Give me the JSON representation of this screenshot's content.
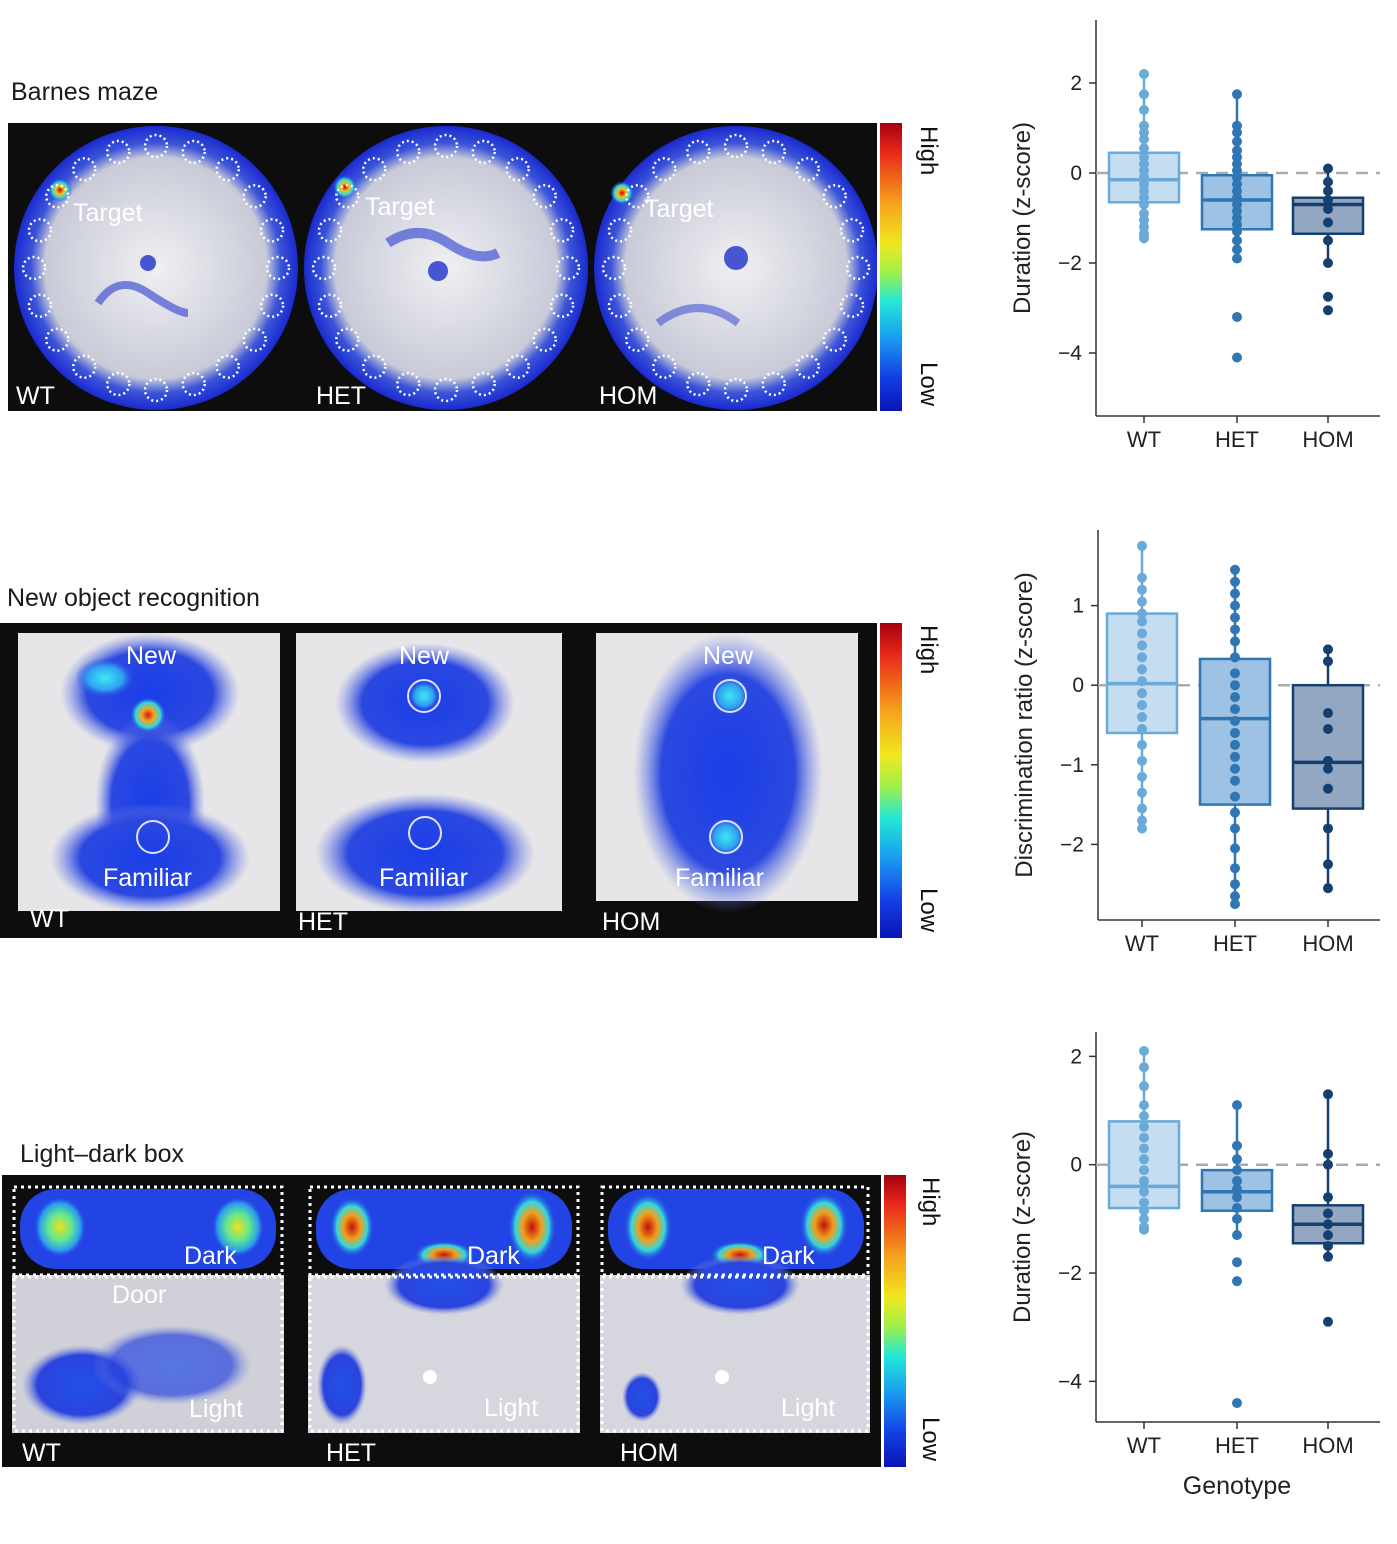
{
  "panels": [
    {
      "title": "Barnes maze",
      "targets": [
        "Target",
        "Target",
        "Target"
      ],
      "groups": [
        "WT",
        "HET",
        "HOM"
      ],
      "colorbar": {
        "high": "High",
        "low": "Low"
      }
    },
    {
      "title": "New object recognition",
      "new": [
        "New",
        "New",
        "New"
      ],
      "familiar": [
        "Familiar",
        "Familiar",
        "Familiar"
      ],
      "groups": [
        "WT",
        "HET",
        "HOM"
      ],
      "colorbar": {
        "high": "High",
        "low": "Low"
      }
    },
    {
      "title": "Light–dark box",
      "dark": [
        "Dark",
        "Dark",
        "Dark"
      ],
      "light": [
        "Light",
        "Light",
        "Light"
      ],
      "door": "Door",
      "groups": [
        "WT",
        "HET",
        "HOM"
      ],
      "colorbar": {
        "high": "High",
        "low": "Low"
      }
    }
  ],
  "colors": {
    "WT": "#6aaad8",
    "HET": "#2f76b4",
    "HOM": "#153f6e"
  },
  "chart_data": [
    {
      "type": "box",
      "ylabel": "Duration (z-score)",
      "xlabel": "",
      "categories": [
        "WT",
        "HET",
        "HOM"
      ],
      "ylim": [
        -5.4,
        3.4
      ],
      "yticks": [
        2,
        0,
        -2,
        -4
      ],
      "ytick_labels": [
        "2",
        "0",
        "−2",
        "−4"
      ],
      "reference_line": 0,
      "boxes": [
        {
          "q1": -0.65,
          "median": -0.15,
          "q3": 0.45,
          "low": -1.45,
          "high": 2.2,
          "points": [
            2.2,
            1.75,
            1.4,
            1.05,
            0.9,
            0.75,
            0.55,
            0.35,
            0.2,
            0.05,
            -0.1,
            -0.25,
            -0.4,
            -0.55,
            -0.7,
            -0.9,
            -1.05,
            -1.2,
            -1.35,
            -1.45
          ]
        },
        {
          "q1": -1.25,
          "median": -0.6,
          "q3": -0.05,
          "low": -1.95,
          "high": 1.75,
          "points": [
            1.75,
            1.05,
            0.9,
            0.7,
            0.5,
            0.35,
            0.2,
            0.05,
            -0.1,
            -0.25,
            -0.4,
            -0.55,
            -0.7,
            -0.85,
            -1.0,
            -1.15,
            -1.3,
            -1.5,
            -1.7,
            -1.9,
            -3.2,
            -4.1
          ]
        },
        {
          "q1": -1.35,
          "median": -0.7,
          "q3": -0.55,
          "low": -2.0,
          "high": 0.1,
          "points": [
            0.1,
            -0.2,
            -0.4,
            -0.6,
            -0.8,
            -1.1,
            -1.5,
            -2.0,
            -2.75,
            -3.05
          ]
        }
      ]
    },
    {
      "type": "box",
      "ylabel": "Discrimination ratio (z-score)",
      "xlabel": "",
      "categories": [
        "WT",
        "HET",
        "HOM"
      ],
      "ylim": [
        -2.95,
        1.95
      ],
      "yticks": [
        1,
        0,
        -1,
        -2
      ],
      "ytick_labels": [
        "1",
        "0",
        "−1",
        "−2"
      ],
      "reference_line": 0,
      "boxes": [
        {
          "q1": -0.6,
          "median": 0.02,
          "q3": 0.9,
          "low": -1.8,
          "high": 1.75,
          "points": [
            1.75,
            1.35,
            1.2,
            1.05,
            0.9,
            0.8,
            0.65,
            0.5,
            0.35,
            0.2,
            0.05,
            -0.1,
            -0.25,
            -0.4,
            -0.55,
            -0.75,
            -0.95,
            -1.15,
            -1.35,
            -1.55,
            -1.7,
            -1.8
          ]
        },
        {
          "q1": -1.5,
          "median": -0.42,
          "q3": 0.33,
          "low": -2.75,
          "high": 1.45,
          "points": [
            1.45,
            1.3,
            1.15,
            1.0,
            0.85,
            0.7,
            0.55,
            0.35,
            0.15,
            0.0,
            -0.15,
            -0.3,
            -0.45,
            -0.6,
            -0.75,
            -0.9,
            -1.05,
            -1.2,
            -1.4,
            -1.6,
            -1.8,
            -2.05,
            -2.3,
            -2.5,
            -2.65,
            -2.75
          ]
        },
        {
          "q1": -1.55,
          "median": -0.97,
          "q3": 0.0,
          "low": -2.55,
          "high": 0.45,
          "points": [
            0.45,
            0.3,
            -0.35,
            -0.55,
            -0.95,
            -1.05,
            -1.3,
            -1.8,
            -2.25,
            -2.55
          ]
        }
      ]
    },
    {
      "type": "box",
      "ylabel": "Duration (z-score)",
      "xlabel": "Genotype",
      "categories": [
        "WT",
        "HET",
        "HOM"
      ],
      "ylim": [
        -4.75,
        2.45
      ],
      "yticks": [
        2,
        0,
        -2,
        -4
      ],
      "ytick_labels": [
        "2",
        "0",
        "−2",
        "−4"
      ],
      "reference_line": 0,
      "boxes": [
        {
          "q1": -0.8,
          "median": -0.4,
          "q3": 0.8,
          "low": -1.2,
          "high": 2.1,
          "points": [
            2.1,
            1.8,
            1.45,
            1.1,
            0.9,
            0.7,
            0.5,
            0.3,
            0.1,
            -0.1,
            -0.3,
            -0.5,
            -0.7,
            -0.85,
            -1.0,
            -1.15,
            -1.2
          ]
        },
        {
          "q1": -0.85,
          "median": -0.5,
          "q3": -0.1,
          "low": -1.3,
          "high": 1.1,
          "points": [
            1.1,
            0.35,
            0.1,
            -0.1,
            -0.3,
            -0.45,
            -0.6,
            -0.8,
            -1.0,
            -1.3,
            -1.8,
            -2.15,
            -4.4
          ]
        },
        {
          "q1": -1.45,
          "median": -1.1,
          "q3": -0.75,
          "low": -1.75,
          "high": 1.3,
          "points": [
            1.3,
            0.2,
            0.0,
            -0.6,
            -0.9,
            -1.1,
            -1.3,
            -1.5,
            -1.7,
            -2.9
          ]
        }
      ]
    }
  ]
}
